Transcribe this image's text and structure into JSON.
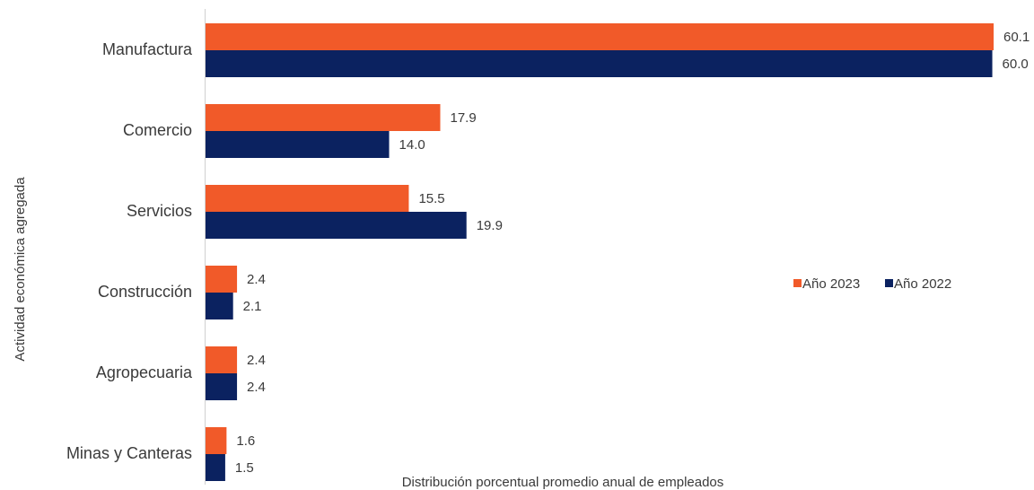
{
  "chart_data": {
    "type": "bar",
    "orientation": "horizontal",
    "title": "",
    "xlabel": "Distribución porcentual promedio anual de empleados",
    "ylabel": "Actividad económica agregada",
    "categories": [
      "Manufactura",
      "Comercio",
      "Servicios",
      "Construcción",
      "Agropecuaria",
      "Minas y Canteras"
    ],
    "series": [
      {
        "name": "Año 2023",
        "color": "#f15a29",
        "values": [
          60.1,
          17.9,
          15.5,
          2.4,
          2.4,
          1.6
        ],
        "labels": [
          "60.1",
          "17.9",
          "15.5",
          "2.4",
          "2.4",
          "1.6"
        ]
      },
      {
        "name": "Año 2022",
        "color": "#0b2260",
        "values": [
          60.0,
          14.0,
          19.9,
          2.1,
          2.4,
          1.5
        ],
        "labels": [
          "60.0",
          "14.0",
          "19.9",
          "2.1",
          "2.4",
          "1.5"
        ]
      }
    ],
    "xlim": [
      0,
      60.1
    ],
    "grid": false,
    "legend": "right"
  }
}
